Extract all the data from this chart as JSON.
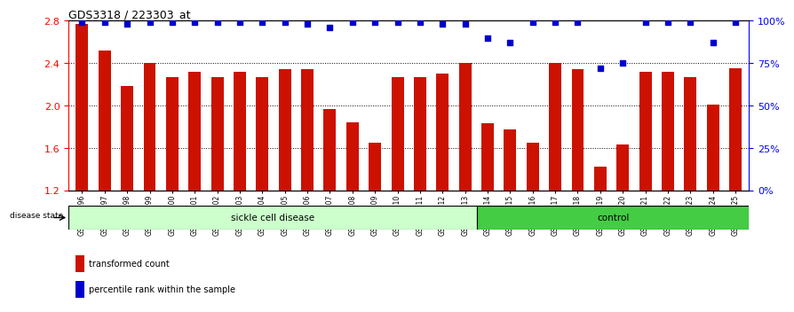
{
  "title": "GDS3318 / 223303_at",
  "samples": [
    "GSM290396",
    "GSM290397",
    "GSM290398",
    "GSM290399",
    "GSM290400",
    "GSM290401",
    "GSM290402",
    "GSM290403",
    "GSM290404",
    "GSM290405",
    "GSM290406",
    "GSM290407",
    "GSM290408",
    "GSM290409",
    "GSM290410",
    "GSM290411",
    "GSM290412",
    "GSM290413",
    "GSM290414",
    "GSM290415",
    "GSM290416",
    "GSM290417",
    "GSM290418",
    "GSM290419",
    "GSM290420",
    "GSM290421",
    "GSM290422",
    "GSM290423",
    "GSM290424",
    "GSM290425"
  ],
  "bar_values": [
    2.77,
    2.52,
    2.18,
    2.4,
    2.27,
    2.32,
    2.27,
    2.32,
    2.27,
    2.34,
    2.34,
    1.97,
    1.84,
    1.65,
    2.27,
    2.27,
    2.3,
    2.4,
    1.83,
    1.77,
    1.65,
    2.4,
    2.34,
    1.42,
    1.63,
    2.32,
    2.32,
    2.27,
    2.01,
    2.35
  ],
  "percentile_values": [
    99,
    99,
    98,
    99,
    99,
    99,
    99,
    99,
    99,
    99,
    98,
    96,
    99,
    99,
    99,
    99,
    98,
    98,
    90,
    87,
    99,
    99,
    99,
    72,
    75,
    99,
    99,
    99,
    87,
    99
  ],
  "sickle_count": 18,
  "control_count": 12,
  "ylim_left": [
    1.2,
    2.8
  ],
  "ylim_right": [
    0,
    100
  ],
  "yticks_left": [
    1.2,
    1.6,
    2.0,
    2.4,
    2.8
  ],
  "yticks_right": [
    0,
    25,
    50,
    75,
    100
  ],
  "bar_color": "#cc1100",
  "scatter_color": "#0000cc",
  "sickle_color": "#ccffcc",
  "control_color": "#44cc44",
  "title_fontsize": 9
}
